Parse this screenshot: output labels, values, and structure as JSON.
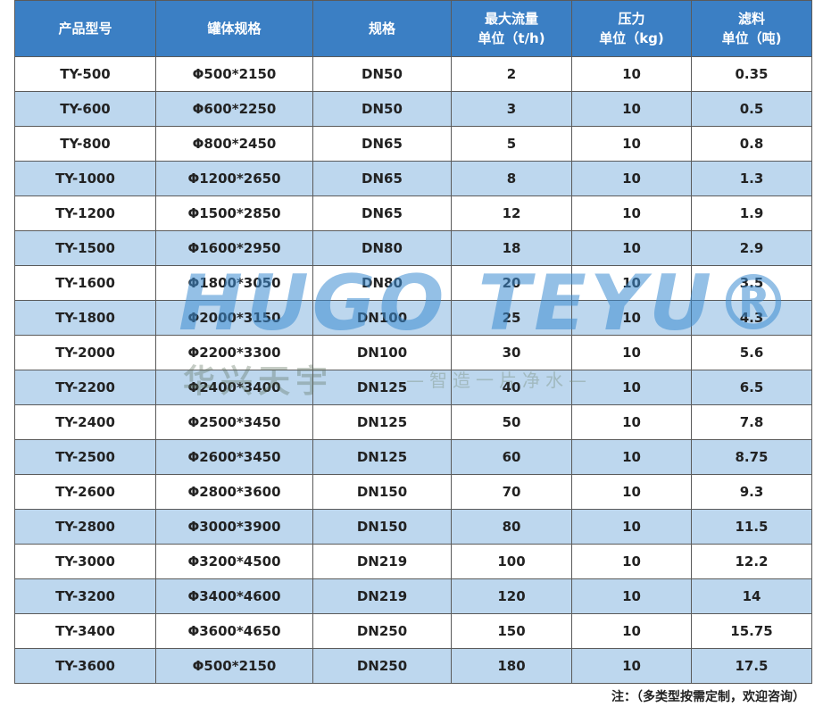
{
  "table": {
    "header": [
      "产品型号",
      "罐体规格",
      "规格",
      "最大流量\n单位（t/h)",
      "压力\n单位（kg)",
      "滤料\n单位（吨)"
    ],
    "rows": [
      [
        "TY-500",
        "Φ500*2150",
        "DN50",
        "2",
        "10",
        "0.35"
      ],
      [
        "TY-600",
        "Φ600*2250",
        "DN50",
        "3",
        "10",
        "0.5"
      ],
      [
        "TY-800",
        "Φ800*2450",
        "DN65",
        "5",
        "10",
        "0.8"
      ],
      [
        "TY-1000",
        "Φ1200*2650",
        "DN65",
        "8",
        "10",
        "1.3"
      ],
      [
        "TY-1200",
        "Φ1500*2850",
        "DN65",
        "12",
        "10",
        "1.9"
      ],
      [
        "TY-1500",
        "Φ1600*2950",
        "DN80",
        "18",
        "10",
        "2.9"
      ],
      [
        "TY-1600",
        "Φ1800*3050",
        "DN80",
        "20",
        "10",
        "3.5"
      ],
      [
        "TY-1800",
        "Φ2000*3150",
        "DN100",
        "25",
        "10",
        "4.3"
      ],
      [
        "TY-2000",
        "Φ2200*3300",
        "DN100",
        "30",
        "10",
        "5.6"
      ],
      [
        "TY-2200",
        "Φ2400*3400",
        "DN125",
        "40",
        "10",
        "6.5"
      ],
      [
        "TY-2400",
        "Φ2500*3450",
        "DN125",
        "50",
        "10",
        "7.8"
      ],
      [
        "TY-2500",
        "Φ2600*3450",
        "DN125",
        "60",
        "10",
        "8.75"
      ],
      [
        "TY-2600",
        "Φ2800*3600",
        "DN150",
        "70",
        "10",
        "9.3"
      ],
      [
        "TY-2800",
        "Φ3000*3900",
        "DN150",
        "80",
        "10",
        "11.5"
      ],
      [
        "TY-3000",
        "Φ3200*4500",
        "DN219",
        "100",
        "10",
        "12.2"
      ],
      [
        "TY-3200",
        "Φ3400*4600",
        "DN219",
        "120",
        "10",
        "14"
      ],
      [
        "TY-3400",
        "Φ3600*4650",
        "DN250",
        "150",
        "10",
        "15.75"
      ],
      [
        "TY-3600",
        "Φ500*2150",
        "DN250",
        "180",
        "10",
        "17.5"
      ]
    ]
  },
  "watermark": {
    "brand": "HUGO TEYU®",
    "name_cn": "华兴天宇",
    "slogan": "—智造一片净水—"
  },
  "note": "注：（多类型按需定制，欢迎咨询）"
}
